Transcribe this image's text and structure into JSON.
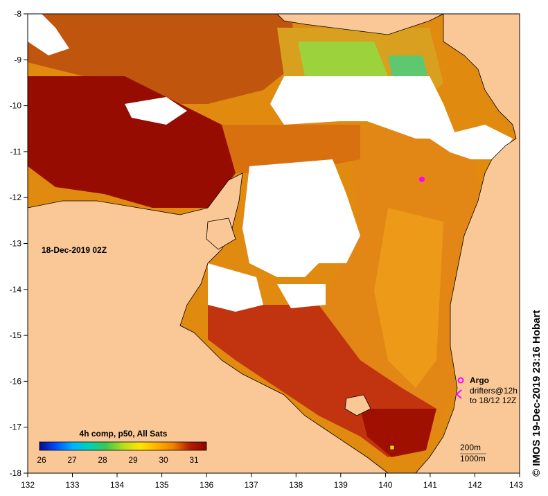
{
  "map": {
    "date_label": "18-Dec-2019 02Z",
    "x_ticks": [
      "132",
      "133",
      "134",
      "135",
      "136",
      "137",
      "138",
      "139",
      "140",
      "141",
      "142",
      "143"
    ],
    "y_ticks": [
      "-8",
      "-9",
      "-10",
      "-11",
      "-12",
      "-13",
      "-14",
      "-15",
      "-16",
      "-17",
      "-18"
    ]
  },
  "colorbar": {
    "title": "4h comp, p50, All Sats",
    "ticks": [
      "26",
      "27",
      "28",
      "29",
      "30",
      "31"
    ],
    "stops": [
      "#0a0a8c",
      "#0050ff",
      "#00b4ff",
      "#00d2b4",
      "#3cc850",
      "#b4dc1e",
      "#ffe600",
      "#ffb400",
      "#f08200",
      "#dc5000",
      "#b41e00",
      "#8c0000"
    ]
  },
  "legend": {
    "argo_label": "Argo",
    "drifters_line1": "drifters@12h",
    "drifters_line2": "to 18/12 12Z",
    "contour_200": "200m",
    "contour_1000": "1000m"
  },
  "credit": "© IMOS 19-Dec-2019 23:16 Hobart",
  "colors": {
    "land": "#fac896",
    "cloud": "#ffffff",
    "argo": "#ff00ff"
  }
}
